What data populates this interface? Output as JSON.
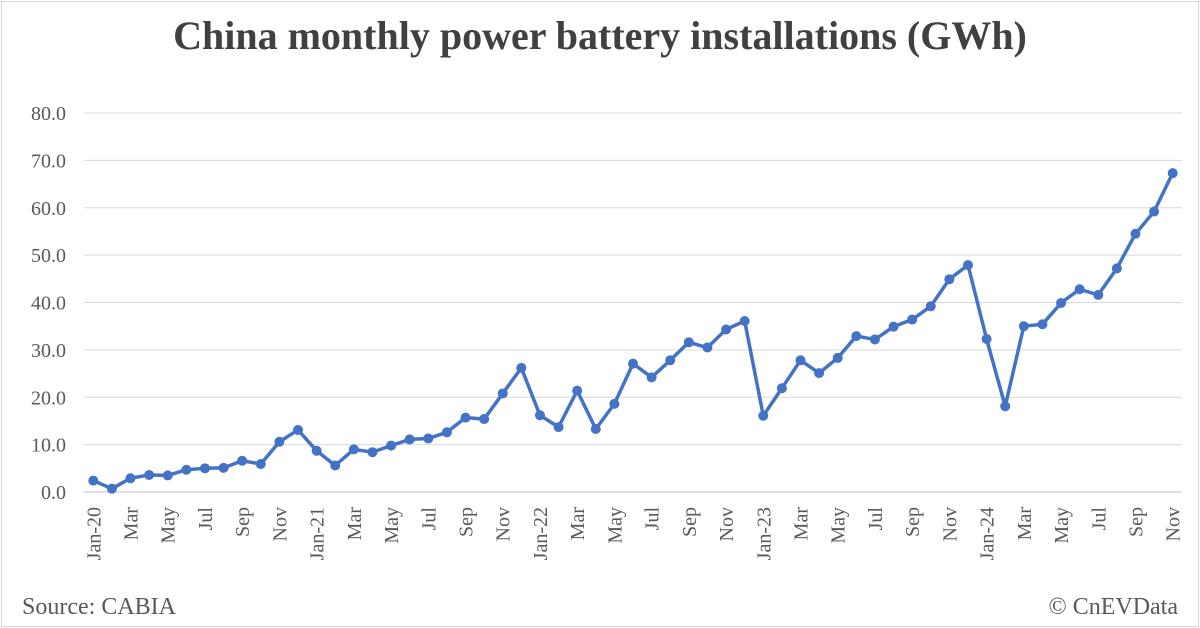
{
  "chart_data": {
    "type": "line",
    "title": "China monthly power battery installations (GWh)",
    "xlabel": "",
    "ylabel": "",
    "ylim": [
      0,
      80
    ],
    "yticks": [
      "0.0",
      "10.0",
      "20.0",
      "30.0",
      "40.0",
      "50.0",
      "60.0",
      "70.0",
      "80.0"
    ],
    "grid": true,
    "legend": "none",
    "x": [
      "Jan-20",
      "Feb-20",
      "Mar-20",
      "Apr-20",
      "May-20",
      "Jun-20",
      "Jul-20",
      "Aug-20",
      "Sep-20",
      "Oct-20",
      "Nov-20",
      "Dec-20",
      "Jan-21",
      "Feb-21",
      "Mar-21",
      "Apr-21",
      "May-21",
      "Jun-21",
      "Jul-21",
      "Aug-21",
      "Sep-21",
      "Oct-21",
      "Nov-21",
      "Dec-21",
      "Jan-22",
      "Feb-22",
      "Mar-22",
      "Apr-22",
      "May-22",
      "Jun-22",
      "Jul-22",
      "Aug-22",
      "Sep-22",
      "Oct-22",
      "Nov-22",
      "Dec-22",
      "Jan-23",
      "Feb-23",
      "Mar-23",
      "Apr-23",
      "May-23",
      "Jun-23",
      "Jul-23",
      "Aug-23",
      "Sep-23",
      "Oct-23",
      "Nov-23",
      "Dec-23",
      "Jan-24",
      "Feb-24",
      "Mar-24",
      "Apr-24",
      "May-24",
      "Jun-24",
      "Jul-24",
      "Aug-24",
      "Sep-24",
      "Oct-24",
      "Nov-24"
    ],
    "tick_labels": [
      "Jan-20",
      "",
      "Mar",
      "",
      "May",
      "",
      "Jul",
      "",
      "Sep",
      "",
      "Nov",
      "",
      "Jan-21",
      "",
      "Mar",
      "",
      "May",
      "",
      "Jul",
      "",
      "Sep",
      "",
      "Nov",
      "",
      "Jan-22",
      "",
      "Mar",
      "",
      "May",
      "",
      "Jul",
      "",
      "Sep",
      "",
      "Nov",
      "",
      "Jan-23",
      "",
      "Mar",
      "",
      "May",
      "",
      "Jul",
      "",
      "Sep",
      "",
      "Nov",
      "",
      "Jan-24",
      "",
      "Mar",
      "",
      "May",
      "",
      "Jul",
      "",
      "Sep",
      "",
      "Nov"
    ],
    "series": [
      {
        "values": [
          2.4,
          0.7,
          2.9,
          3.6,
          3.5,
          4.7,
          5.0,
          5.1,
          6.6,
          5.9,
          10.6,
          13.1,
          8.7,
          5.6,
          9.0,
          8.4,
          9.8,
          11.1,
          11.3,
          12.6,
          15.7,
          15.4,
          20.8,
          26.2,
          16.2,
          13.7,
          21.4,
          13.3,
          18.6,
          27.1,
          24.2,
          27.8,
          31.6,
          30.5,
          34.3,
          36.1,
          16.1,
          21.9,
          27.8,
          25.1,
          28.3,
          32.9,
          32.2,
          34.9,
          36.4,
          39.2,
          44.9,
          47.9,
          32.3,
          18.1,
          35.0,
          35.4,
          39.9,
          42.8,
          41.6,
          47.2,
          54.5,
          59.2,
          67.3
        ],
        "color": "#4472C4"
      }
    ]
  },
  "footer": {
    "source": "Source: CABIA",
    "credit": "© CnEVData"
  },
  "colors": {
    "line": "#4472C4",
    "grid": "#d9d9d9",
    "text": "#595959",
    "title": "#404040"
  }
}
